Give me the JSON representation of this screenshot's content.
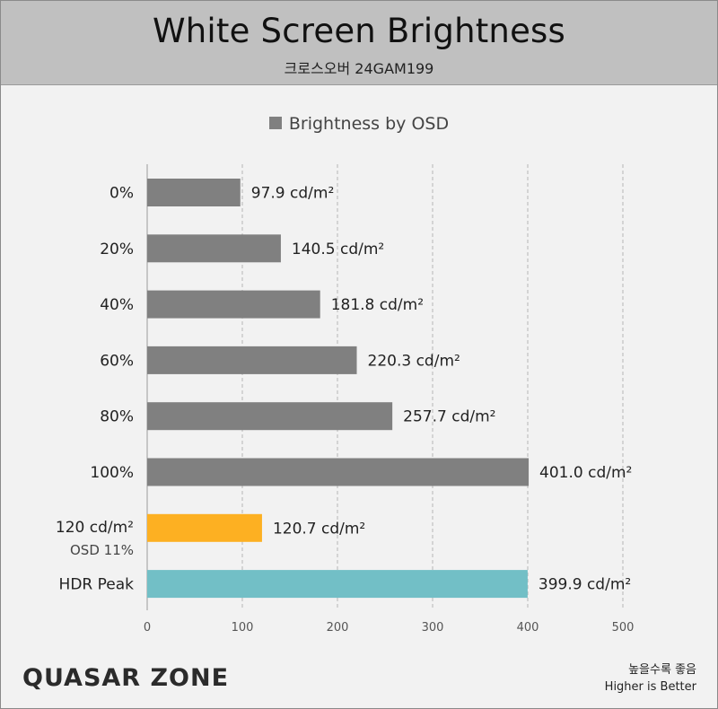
{
  "header": {
    "title": "White Screen Brightness",
    "subtitle": "크로스오버 24GAM199"
  },
  "legend": {
    "label": "Brightness by OSD"
  },
  "footer": {
    "note_ko": "높을수록 좋음",
    "note_en": "Higher is Better",
    "logo": "QUASAR ZONE"
  },
  "colors": {
    "default_bar": "#808080",
    "highlight_bar": "#FDB022",
    "hdr_bar": "#72BFC6"
  },
  "chart_data": {
    "type": "bar",
    "orientation": "horizontal",
    "title": "White Screen Brightness",
    "subtitle": "크로스오버 24GAM199",
    "xlim": [
      0,
      500
    ],
    "xticks": [
      "0",
      "100",
      "200",
      "300",
      "400",
      "500"
    ],
    "grid": true,
    "legend_position": "top-center",
    "series": [
      {
        "name": "Brightness by OSD"
      }
    ],
    "bars": [
      {
        "category": "0%",
        "sublabel": "",
        "value": 97.9,
        "label": "97.9 cd/m²",
        "color": "#808080"
      },
      {
        "category": "20%",
        "sublabel": "",
        "value": 140.5,
        "label": "140.5 cd/m²",
        "color": "#808080"
      },
      {
        "category": "40%",
        "sublabel": "",
        "value": 181.8,
        "label": "181.8 cd/m²",
        "color": "#808080"
      },
      {
        "category": "60%",
        "sublabel": "",
        "value": 220.3,
        "label": "220.3 cd/m²",
        "color": "#808080"
      },
      {
        "category": "80%",
        "sublabel": "",
        "value": 257.7,
        "label": "257.7 cd/m²",
        "color": "#808080"
      },
      {
        "category": "100%",
        "sublabel": "",
        "value": 401.0,
        "label": "401.0 cd/m²",
        "color": "#808080"
      },
      {
        "category": "120 cd/m²",
        "sublabel": "OSD 11%",
        "value": 120.7,
        "label": "120.7 cd/m²",
        "color": "#FDB022"
      },
      {
        "category": "HDR Peak",
        "sublabel": "",
        "value": 399.9,
        "label": "399.9 cd/m²",
        "color": "#72BFC6"
      }
    ]
  }
}
